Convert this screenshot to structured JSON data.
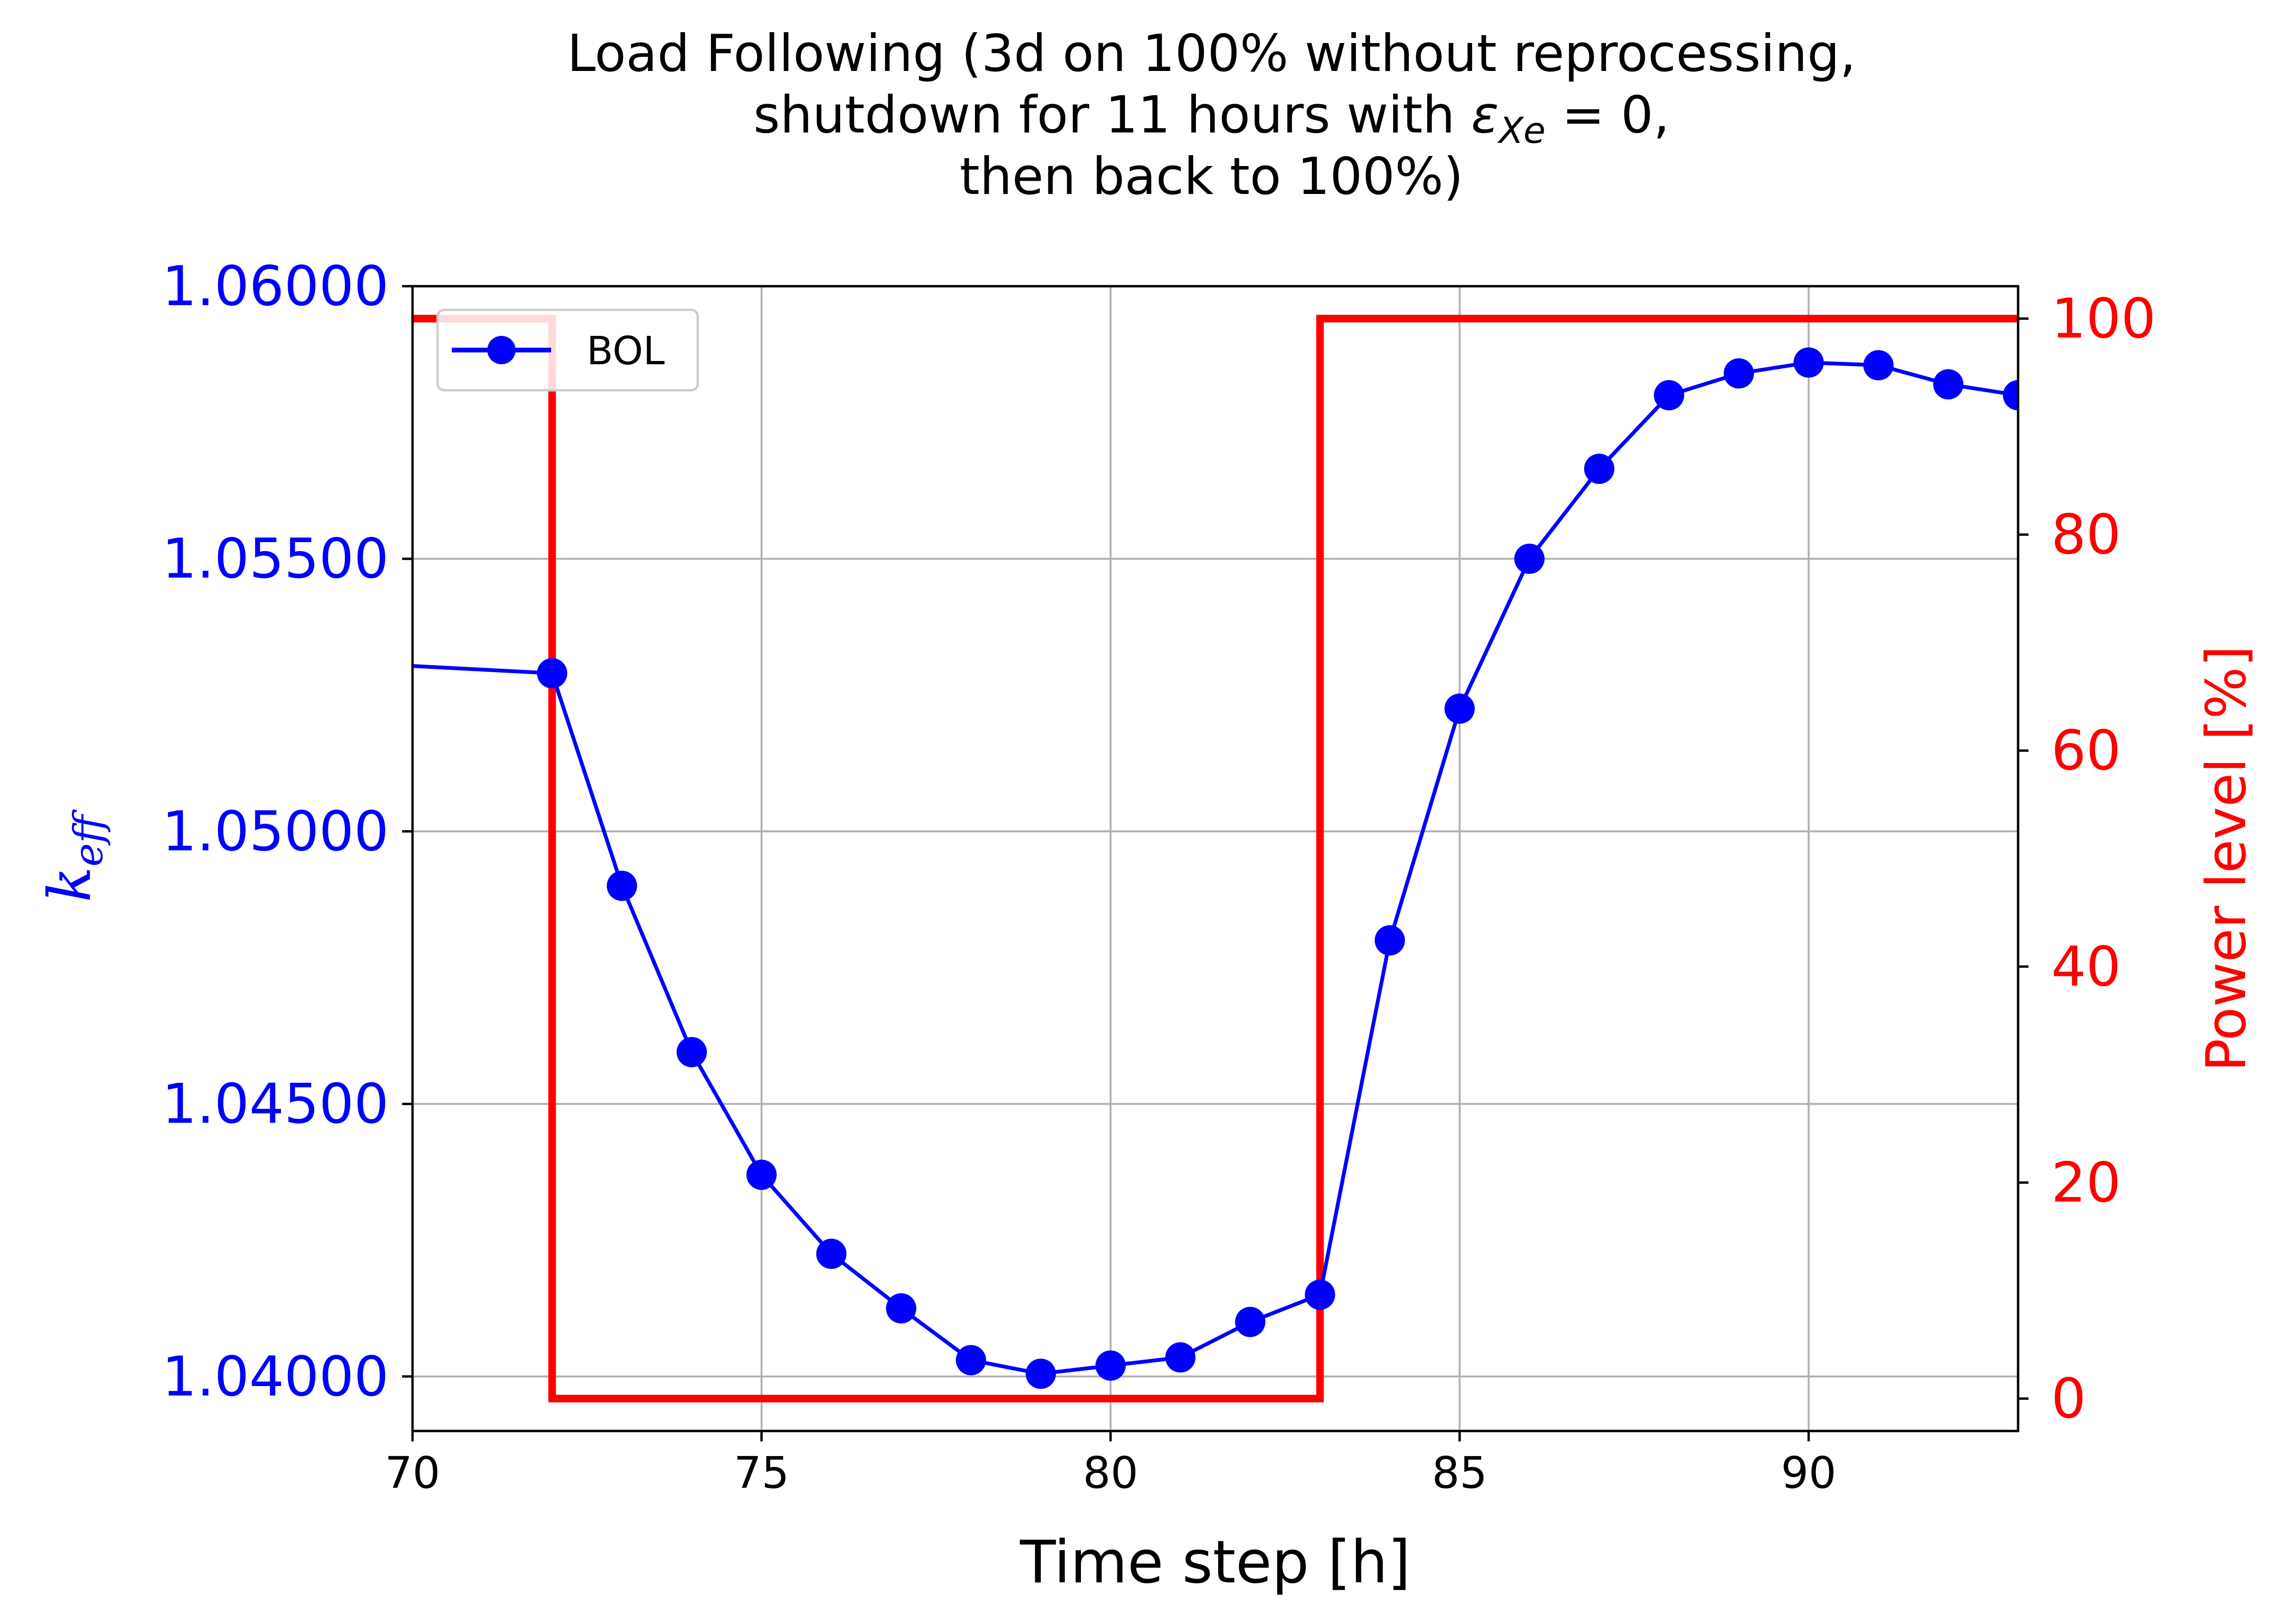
{
  "chart_data": {
    "type": "line",
    "title_lines": [
      "Load Following (3d on 100% without reprocessing,",
      "shutdown for 11 hours with ",
      "then back to 100%)"
    ],
    "title_math": {
      "symbol": "ε",
      "subscript": "Xe",
      "tail": " = 0,"
    },
    "xlabel": "Time step [h]",
    "ylabel_left": {
      "symbol": "k",
      "subscript": "eff"
    },
    "ylabel_right": "Power level [%]",
    "xlim": [
      70,
      93
    ],
    "ylim_left": [
      1.039,
      1.06
    ],
    "ylim_right": [
      -3,
      103
    ],
    "x_ticks": [
      "70",
      "75",
      "80",
      "85",
      "90"
    ],
    "x_tick_values": [
      70,
      75,
      80,
      85,
      90
    ],
    "y_left_ticks": [
      "1.04000",
      "1.04500",
      "1.05000",
      "1.05500",
      "1.06000"
    ],
    "y_left_tick_values": [
      1.04,
      1.045,
      1.05,
      1.055,
      1.06
    ],
    "y_right_ticks": [
      "0",
      "20",
      "40",
      "60",
      "80",
      "100"
    ],
    "y_right_tick_values": [
      0,
      20,
      40,
      60,
      80,
      100
    ],
    "grid": true,
    "legend_position": "upper-left",
    "colors": {
      "keff": "#0000ff",
      "power": "#ff0000",
      "grid": "#b0b0b0"
    },
    "series": [
      {
        "name": "BOL",
        "axis": "left",
        "marker": "circle",
        "x": [
          69,
          72,
          73,
          74,
          75,
          76,
          77,
          78,
          79,
          80,
          81,
          82,
          83,
          84,
          85,
          86,
          87,
          88,
          89,
          90,
          91,
          92,
          93
        ],
        "y": [
          1.0531,
          1.0529,
          1.049,
          1.04595,
          1.0437,
          1.04225,
          1.04125,
          1.0403,
          1.04005,
          1.0402,
          1.04035,
          1.041,
          1.0415,
          1.048,
          1.05225,
          1.055,
          1.05665,
          1.058,
          1.0584,
          1.0586,
          1.05855,
          1.0582,
          1.058
        ],
        "marker_from_index": 1
      },
      {
        "axis": "right",
        "step": true,
        "x": [
          70,
          72,
          72,
          83,
          83,
          93
        ],
        "y": [
          100,
          100,
          0,
          0,
          100,
          100
        ]
      }
    ]
  }
}
